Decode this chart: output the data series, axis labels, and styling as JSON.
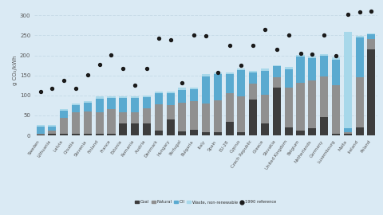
{
  "countries": [
    "Sweden",
    "Lithuania",
    "Latvia",
    "Croatia",
    "Slovenia",
    "Finland",
    "France",
    "Estonia",
    "Romania",
    "Austria",
    "Denmark",
    "Hungary",
    "Portugal",
    "Bulgaria",
    "Italy",
    "Spain",
    "EU-28",
    "Cyprus",
    "Czech Republic",
    "Greece",
    "Slovakia",
    "United Kingdom",
    "Belgium",
    "Netherlands",
    "Germany",
    "Luxembourg",
    "Malta",
    "Ireland",
    "Poland"
  ],
  "coal": [
    2,
    5,
    4,
    5,
    5,
    5,
    5,
    30,
    30,
    30,
    12,
    40,
    10,
    15,
    8,
    8,
    35,
    8,
    90,
    30,
    120,
    20,
    12,
    18,
    45,
    5,
    4,
    20,
    215
  ],
  "natural": [
    3,
    8,
    40,
    52,
    55,
    52,
    60,
    28,
    28,
    38,
    65,
    35,
    72,
    70,
    72,
    80,
    70,
    90,
    40,
    72,
    25,
    100,
    120,
    120,
    102,
    120,
    5,
    125,
    25
  ],
  "oil": [
    18,
    10,
    18,
    18,
    22,
    35,
    28,
    35,
    35,
    28,
    28,
    30,
    32,
    30,
    68,
    65,
    48,
    65,
    28,
    60,
    28,
    45,
    65,
    55,
    52,
    65,
    10,
    100,
    12
  ],
  "waste": [
    3,
    4,
    4,
    4,
    4,
    5,
    5,
    4,
    4,
    4,
    4,
    5,
    5,
    4,
    6,
    4,
    4,
    4,
    4,
    5,
    3,
    6,
    4,
    4,
    4,
    5,
    240,
    4,
    3
  ],
  "ref_1990": [
    110,
    118,
    138,
    118,
    152,
    178,
    202,
    168,
    126,
    168,
    243,
    238,
    132,
    250,
    248,
    157,
    225,
    175,
    225,
    265,
    215,
    250,
    205,
    203,
    250,
    199,
    302,
    308,
    310
  ],
  "bar_color_coal": "#3d3d3d",
  "bar_color_natural": "#909090",
  "bar_color_oil": "#5aaad0",
  "bar_color_waste": "#a8d8ea",
  "ref_color": "#1a1a1a",
  "bg_color": "#daeaf4",
  "grid_color": "#c8dce8",
  "ylabel": "g CO₂/kWh",
  "ylim": [
    0,
    325
  ],
  "yticks": [
    0,
    50,
    100,
    150,
    200,
    250,
    300
  ]
}
